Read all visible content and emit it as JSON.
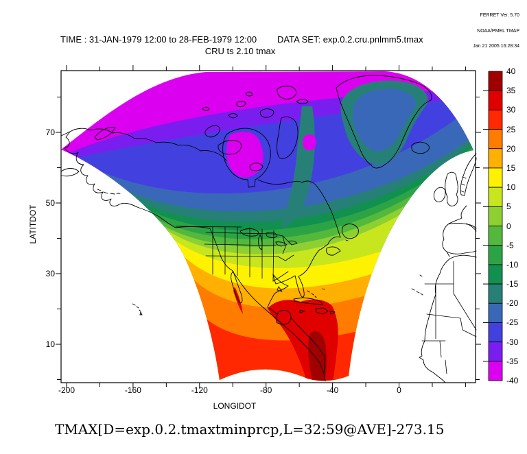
{
  "stamp": {
    "line1": "FERRET Ver. 5.70",
    "line2": "NOAA/PMEL TMAP",
    "line3": "Jan 21 2005 16:28:34"
  },
  "header": {
    "time_label": "TIME : 31-JAN-1979 12:00 to 28-FEB-1979 12:00",
    "dataset_label": "DATA SET: exp.0.2.cru.pnlmm5.tmax",
    "subtitle": "CRU ts 2.10 tmax"
  },
  "caption": "TMAX[D=exp.0.2.tmaxtminprcp,L=32:59@AVE]-273.15",
  "axes": {
    "x": {
      "title": "LONGIDOT",
      "ticks": [
        {
          "v": -200,
          "label": "-200"
        },
        {
          "v": -180
        },
        {
          "v": -160,
          "label": "-160"
        },
        {
          "v": -140
        },
        {
          "v": -120,
          "label": "-120"
        },
        {
          "v": -100
        },
        {
          "v": -80,
          "label": "-80"
        },
        {
          "v": -60
        },
        {
          "v": -40,
          "label": "-40"
        },
        {
          "v": -20
        },
        {
          "v": 0,
          "label": "0"
        },
        {
          "v": 20
        },
        {
          "v": 40
        }
      ]
    },
    "y": {
      "title": "LATITDOT",
      "ticks": [
        {
          "v": 80
        },
        {
          "v": 70,
          "label": "70"
        },
        {
          "v": 60
        },
        {
          "v": 50,
          "label": "50"
        },
        {
          "v": 40
        },
        {
          "v": 30,
          "label": "30"
        },
        {
          "v": 20
        },
        {
          "v": 10,
          "label": "10"
        },
        {
          "v": 0
        }
      ]
    }
  },
  "colorbar": {
    "levels": [
      "40",
      "35",
      "30",
      "25",
      "20",
      "15",
      "10",
      "5",
      "0",
      "-5",
      "-10",
      "-15",
      "-20",
      "-25",
      "-30",
      "-35",
      "-40"
    ],
    "colors": [
      "#a00000",
      "#e00000",
      "#ff2800",
      "#ff7c00",
      "#ffb000",
      "#fff200",
      "#c8e61e",
      "#8ed032",
      "#54b83c",
      "#2ca446",
      "#129050",
      "#268078",
      "#3a68b8",
      "#4340e0",
      "#7a1ef0",
      "#dc00f0"
    ]
  },
  "chart_data": {
    "type": "heatmap",
    "subtype": "filled_contour_map",
    "title": "CRU ts 2.10 tmax",
    "time_range": "31-JAN-1979 12:00 to 28-FEB-1979 12:00",
    "dataset": "exp.0.2.cru.pnlmm5.tmax",
    "variable_expression": "TMAX[D=exp.0.2.tmaxtminprcp,L=32:59@AVE]-273.15",
    "xlabel": "LONGIDOT",
    "ylabel": "LATITDOT",
    "x_major_ticks": [
      -200,
      -160,
      -120,
      -80,
      -40,
      0
    ],
    "y_major_ticks": [
      70,
      50,
      30,
      10
    ],
    "xlim": [
      -204,
      46
    ],
    "ylim": [
      -1,
      88
    ],
    "legend_position": "right",
    "contour_levels": [
      40,
      35,
      30,
      25,
      20,
      15,
      10,
      5,
      0,
      -5,
      -10,
      -15,
      -20,
      -25,
      -30,
      -35,
      -40
    ],
    "level_colors_hot_to_cold": [
      "#a00000",
      "#e00000",
      "#ff2800",
      "#ff7c00",
      "#ffb000",
      "#fff200",
      "#c8e61e",
      "#8ed032",
      "#54b83c",
      "#2ca446",
      "#129050",
      "#268078",
      "#3a68b8",
      "#4340e0",
      "#7a1ef0",
      "#dc00f0"
    ],
    "description_of_field": "Temperature maximum over a curvilinear North America grid: coldest (-35 to -40) magenta over the Arctic, blues/purples over Canada, greens over the northern US, yellow/orange mid-latitudes, red (25-35) over Mexico, Caribbean and Central America"
  }
}
